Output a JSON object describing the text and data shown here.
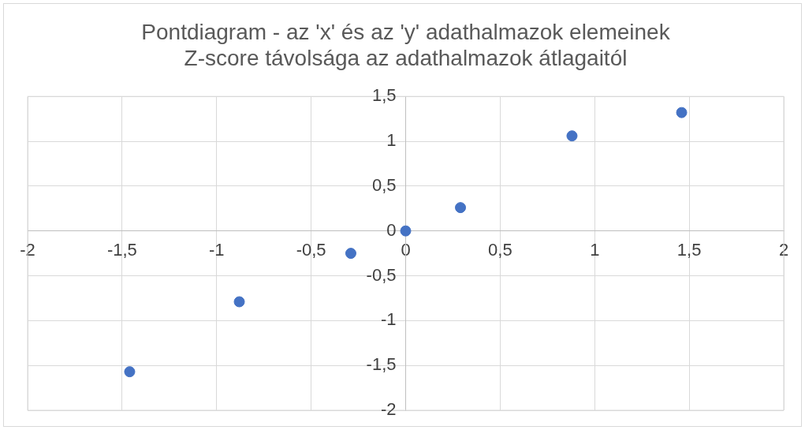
{
  "chart_data": {
    "type": "scatter",
    "title": "Pontdiagram - az 'x' és az 'y' adathalmazok elemeinek\nZ-score távolsága az adathalmazok átlagaitól",
    "series": [
      {
        "color": "#4472c4",
        "x": [
          -1.46,
          -0.88,
          -0.29,
          0,
          0.29,
          0.88,
          1.46
        ],
        "values": [
          -1.57,
          -0.79,
          -0.25,
          0,
          0.26,
          1.06,
          1.32
        ]
      }
    ],
    "xlim": [
      -2,
      2
    ],
    "ylim": [
      -2,
      1.5
    ],
    "xticks": [
      -2,
      {
        "value": -1.5,
        "label": "-1,5"
      },
      -1,
      {
        "value": -0.5,
        "label": "-0,5"
      },
      0,
      {
        "value": 0.5,
        "label": "0,5"
      },
      1,
      {
        "value": 1.5,
        "label": "1,5"
      },
      2
    ],
    "yticks": [
      -2,
      {
        "value": -1.5,
        "label": "-1,5"
      },
      -1,
      {
        "value": -0.5,
        "label": "-0,5"
      },
      0,
      {
        "value": 0.5,
        "label": "0,5"
      },
      1,
      {
        "value": 1.5,
        "label": "1,5"
      }
    ],
    "grid": true,
    "legend": false,
    "marker": "circle"
  }
}
